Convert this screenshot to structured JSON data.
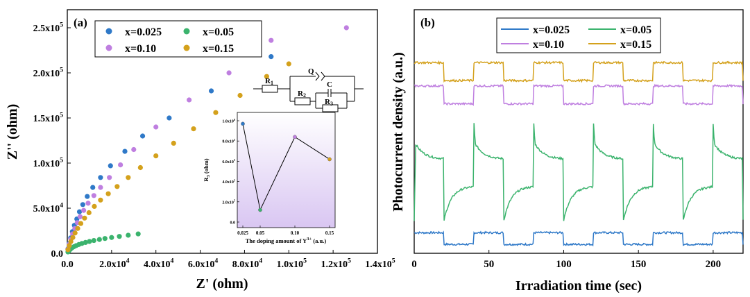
{
  "colors": {
    "blue": "#2f79c8",
    "green": "#3bb36d",
    "purple": "#bf7fe0",
    "orange": "#d4a11c",
    "inset_line": "#000000",
    "inset_bg_top": "#ffffff",
    "inset_bg_bottom": "#d6c2f0"
  },
  "chart_data": [
    {
      "panel_label": "(a)",
      "type": "scatter",
      "xlabel": "Z' (ohm)",
      "ylabel": "Z'' (ohm)",
      "xlim": [
        0,
        140000
      ],
      "ylim": [
        0,
        270000
      ],
      "xticks": [
        0,
        20000,
        40000,
        60000,
        80000,
        100000,
        120000,
        140000
      ],
      "xtick_labels": [
        "0.0",
        "2.0x10",
        "4.0x10",
        "6.0x10",
        "8.0x10",
        "1.0x10",
        "1.2x10",
        "1.4x10"
      ],
      "xtick_exps": [
        "",
        "4",
        "4",
        "4",
        "4",
        "5",
        "5",
        "5"
      ],
      "yticks": [
        0,
        50000,
        100000,
        150000,
        200000,
        250000
      ],
      "ytick_labels": [
        "0.0",
        "5.0x10",
        "1.0x10",
        "1.5x10",
        "2.0x10",
        "2.5x10"
      ],
      "ytick_exps": [
        "",
        "4",
        "5",
        "5",
        "5",
        "5"
      ],
      "legend_position": "top-left",
      "series": [
        {
          "name": "x=0.025",
          "color": "#2f79c8",
          "x": [
            300,
            900,
            1500,
            2300,
            3200,
            4300,
            5500,
            7000,
            9000,
            11500,
            15000,
            19500,
            26000,
            34000,
            46000,
            65000,
            92000
          ],
          "y": [
            5000,
            11000,
            17000,
            24000,
            31000,
            38000,
            46000,
            54000,
            63000,
            73000,
            84000,
            97000,
            113000,
            130000,
            150000,
            180000,
            218000
          ]
        },
        {
          "name": "x=0.05",
          "color": "#3bb36d",
          "x": [
            300,
            800,
            1400,
            2100,
            3000,
            4000,
            5200,
            6600,
            8200,
            10000,
            12000,
            14500,
            17000,
            20000,
            23500,
            27500,
            32000
          ],
          "y": [
            1500,
            3000,
            4500,
            6000,
            7300,
            8500,
            9700,
            10900,
            12000,
            13100,
            14200,
            15300,
            16400,
            17500,
            18700,
            20000,
            21500
          ]
        },
        {
          "name": "x=0.10",
          "color": "#bf7fe0",
          "x": [
            300,
            900,
            1600,
            2400,
            3400,
            4500,
            5800,
            7400,
            9400,
            12000,
            15000,
            19000,
            24000,
            30000,
            40000,
            55000,
            73000,
            92000,
            126000
          ],
          "y": [
            4500,
            10000,
            15500,
            21500,
            27500,
            34000,
            40500,
            47500,
            55500,
            64000,
            73000,
            84000,
            98000,
            115000,
            140000,
            170000,
            200000,
            236000,
            250000
          ]
        },
        {
          "name": "x=0.15",
          "color": "#d4a11c",
          "x": [
            300,
            900,
            1600,
            2500,
            3500,
            4700,
            6100,
            7800,
            9800,
            12200,
            15000,
            18500,
            22500,
            27500,
            33000,
            40000,
            48000,
            57000,
            67000,
            78000,
            90000,
            100000
          ],
          "y": [
            4000,
            8500,
            13000,
            17500,
            22500,
            27500,
            33000,
            39000,
            45000,
            52000,
            59000,
            66000,
            74000,
            84000,
            95000,
            108000,
            122000,
            138000,
            156000,
            175000,
            196000,
            210000
          ]
        }
      ]
    },
    {
      "panel_label": "inset",
      "type": "line",
      "xlabel": "The doping amount of Y",
      "xlabel_sup": "3+",
      "xlabel_unit": "(a.u.)",
      "ylabel": "R",
      "ylabel_sub": "3",
      "ylabel_unit": "(ohm)",
      "xlim": [
        0.025,
        0.15
      ],
      "ylim": [
        0,
        1000000
      ],
      "xticks": [
        0.025,
        0.05,
        0.1,
        0.15
      ],
      "xtick_labels": [
        "0.025",
        "0.05",
        "0.10",
        "0.15"
      ],
      "yticks": [
        0,
        200000,
        400000,
        600000,
        800000,
        1000000
      ],
      "ytick_labels": [
        "0.0",
        "2.0x10",
        "4.0x10",
        "6.0x10",
        "8.0x10",
        "1.0x10"
      ],
      "ytick_exps": [
        "",
        "5",
        "5",
        "5",
        "5",
        "6"
      ],
      "x": [
        0.025,
        0.05,
        0.1,
        0.15
      ],
      "y": [
        970000,
        120000,
        840000,
        620000
      ],
      "point_colors": [
        "#2f79c8",
        "#3bb36d",
        "#bf7fe0",
        "#d4a11c"
      ]
    },
    {
      "panel_label": "(b)",
      "type": "line",
      "xlabel": "Irradiation time (sec)",
      "ylabel": "Photocurrent density (a.u.)",
      "xlim": [
        0,
        220
      ],
      "xticks": [
        0,
        50,
        100,
        150,
        200
      ],
      "xtick_labels": [
        "0",
        "50",
        "100",
        "150",
        "200"
      ],
      "yticks_shown": false,
      "legend_position": "top",
      "cycle": {
        "on_seconds": 20,
        "period_seconds": 40
      },
      "series": [
        {
          "name": "x=0.025",
          "color": "#2f79c8",
          "dark": 0.3,
          "light": 1.6,
          "spike": 0,
          "decay": 0
        },
        {
          "name": "x=0.05",
          "color": "#3bb36d",
          "dark": 3.0,
          "light": 11.8,
          "spike": 2.0,
          "decay": 2.0
        },
        {
          "name": "x=0.10",
          "color": "#bf7fe0",
          "dark": 16.0,
          "light": 18.0,
          "spike": 0,
          "decay": 0
        },
        {
          "name": "x=0.15",
          "color": "#d4a11c",
          "dark": 18.6,
          "light": 20.6,
          "spike": 0,
          "decay": 0
        }
      ]
    }
  ],
  "circuit": {
    "r1": "R",
    "r1_sub": "1",
    "r2": "R",
    "r2_sub": "2",
    "r3": "R",
    "r3_sub": "3",
    "q": "Q",
    "c": "C"
  }
}
